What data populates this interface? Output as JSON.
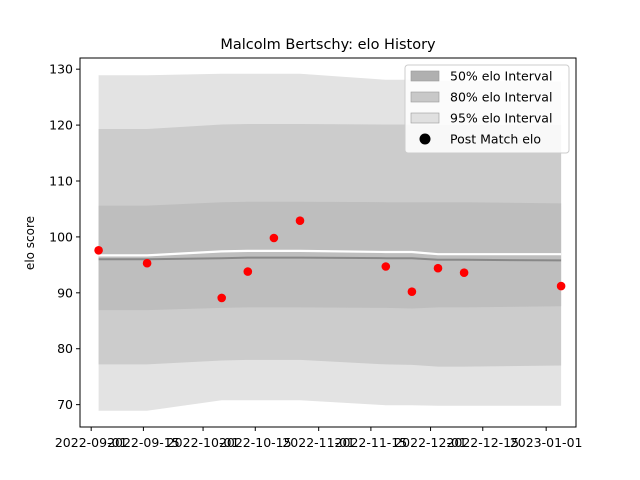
{
  "chart_data": {
    "type": "scatter",
    "title": "Malcolm Bertschy: elo History",
    "xlabel": "",
    "ylabel": "elo score",
    "xlim": [
      "2022-08-29",
      "2023-01-09"
    ],
    "ylim": [
      66,
      132
    ],
    "y_ticks": [
      70,
      80,
      90,
      100,
      110,
      120,
      130
    ],
    "x_ticks": [
      "2022-09-01",
      "2022-09-15",
      "2022-10-01",
      "2022-10-15",
      "2022-11-01",
      "2022-11-15",
      "2022-12-01",
      "2022-12-15",
      "2023-01-01"
    ],
    "legend_position": "top-right",
    "bands": {
      "dates": [
        "2022-09-03",
        "2022-09-16",
        "2022-10-06",
        "2022-10-13",
        "2022-10-27",
        "2022-11-19",
        "2022-11-26",
        "2022-12-03",
        "2022-12-10",
        "2023-01-05"
      ],
      "mean": [
        96.7,
        96.7,
        97.4,
        97.5,
        97.5,
        97.3,
        97.3,
        96.9,
        96.9,
        96.9
      ],
      "p50": {
        "low": [
          96.0,
          96.0,
          96.2,
          96.3,
          96.3,
          96.2,
          96.2,
          95.9,
          95.9,
          95.8
        ],
        "high": [
          96.0,
          96.0,
          96.2,
          96.3,
          96.3,
          96.2,
          96.2,
          95.9,
          95.9,
          95.8
        ]
      },
      "p80": {
        "low": [
          86.9,
          86.9,
          87.3,
          87.4,
          87.4,
          87.3,
          87.2,
          87.4,
          87.4,
          87.6
        ],
        "high": [
          105.6,
          105.6,
          106.2,
          106.3,
          106.3,
          106.2,
          106.2,
          106.2,
          106.2,
          106.0
        ]
      },
      "p95": {
        "low": [
          77.2,
          77.2,
          77.9,
          78.0,
          78.0,
          77.2,
          77.1,
          76.8,
          76.8,
          77.0
        ],
        "high": [
          119.3,
          119.3,
          120.1,
          120.2,
          120.2,
          120.1,
          120.1,
          120.0,
          120.0,
          120.0
        ]
      },
      "p99": {
        "low": [
          68.9,
          68.9,
          70.8,
          70.8,
          70.8,
          69.9,
          69.9,
          69.8,
          69.8,
          69.8
        ],
        "high": [
          128.9,
          128.9,
          129.2,
          129.2,
          129.2,
          128.1,
          128.1,
          127.9,
          127.9,
          127.8
        ]
      }
    },
    "points": {
      "name": "Post Match elo",
      "x": [
        "2022-09-03",
        "2022-09-16",
        "2022-10-06",
        "2022-10-13",
        "2022-10-20",
        "2022-10-27",
        "2022-11-19",
        "2022-11-26",
        "2022-12-03",
        "2022-12-10",
        "2023-01-05"
      ],
      "y": [
        97.6,
        95.3,
        89.1,
        93.8,
        99.8,
        102.9,
        94.7,
        90.2,
        94.4,
        93.6,
        91.2
      ]
    },
    "legend": [
      {
        "label": "50% elo Interval",
        "kind": "patch",
        "color": "#b0b0b0"
      },
      {
        "label": "80% elo Interval",
        "kind": "patch",
        "color": "#c8c8c8"
      },
      {
        "label": "95% elo Interval",
        "kind": "patch",
        "color": "#e0e0e0"
      },
      {
        "label": "Post Match elo",
        "kind": "dot",
        "color": "#000000"
      }
    ],
    "colors": {
      "band_inner": "#bebebe",
      "band_middle": "#cccccc",
      "band_outer": "#e3e3e3",
      "mean_line": "#ffffff",
      "median_line": "#888888",
      "points": "#ff0000"
    }
  }
}
